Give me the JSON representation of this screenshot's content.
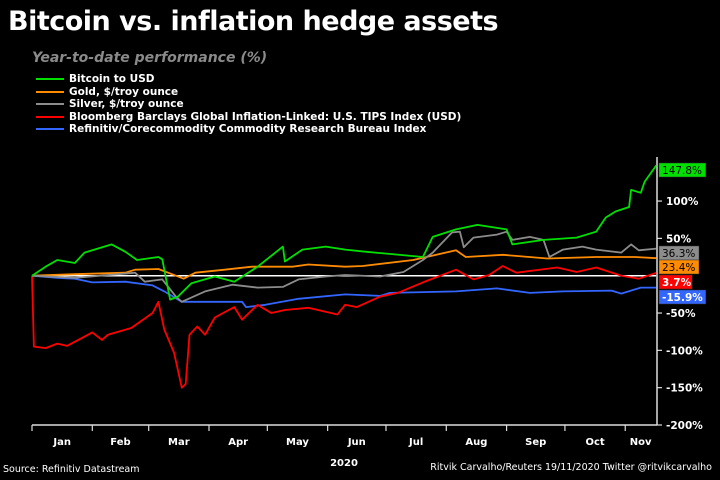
{
  "header": {
    "title": "Bitcoin vs. inflation hedge assets",
    "subtitle": "Year-to-date performance (%)"
  },
  "footer": {
    "source": "Source: Refinitiv Datastream",
    "credit": "Ritvik Carvalho/Reuters 19/11/2020 Twitter @ritvikcarvalho"
  },
  "chart_data": {
    "type": "line",
    "title": "Bitcoin vs. inflation hedge assets",
    "subtitle": "Year-to-date performance (%)",
    "xlabel": "2020",
    "ylabel": "",
    "x_tick_labels": [
      "Jan",
      "Feb",
      "Mar",
      "Apr",
      "May",
      "Jun",
      "Jul",
      "Aug",
      "Sep",
      "Oct",
      "Nov"
    ],
    "y_ticks": [
      100,
      50,
      -50,
      -100,
      -150,
      -200
    ],
    "y_tick_labels": [
      "100%",
      "50%",
      "-50%",
      "-100%",
      "-150%",
      "-200%"
    ],
    "ylim": [
      -200,
      155
    ],
    "xlim": [
      "2020-01-01",
      "2020-11-19"
    ],
    "legend_position": "top-left",
    "grid": false,
    "zero_line_color": "#ffffff",
    "series": [
      {
        "name": "Bitcoin to USD",
        "color": "#00e000",
        "end_label": "147.8%",
        "end_label_text_color": "#000000",
        "points": [
          [
            "2020-01-01",
            0
          ],
          [
            "2020-01-08",
            12
          ],
          [
            "2020-01-14",
            21
          ],
          [
            "2020-01-23",
            17
          ],
          [
            "2020-01-28",
            31
          ],
          [
            "2020-02-11",
            42
          ],
          [
            "2020-02-18",
            32
          ],
          [
            "2020-02-24",
            21
          ],
          [
            "2020-03-06",
            25
          ],
          [
            "2020-03-08",
            22
          ],
          [
            "2020-03-12",
            -32
          ],
          [
            "2020-03-16",
            -28
          ],
          [
            "2020-03-23",
            -10
          ],
          [
            "2020-04-04",
            -1
          ],
          [
            "2020-04-14",
            -8
          ],
          [
            "2020-04-26",
            12
          ],
          [
            "2020-05-09",
            39
          ],
          [
            "2020-05-10",
            19
          ],
          [
            "2020-05-19",
            35
          ],
          [
            "2020-05-31",
            39
          ],
          [
            "2020-06-10",
            35
          ],
          [
            "2020-06-21",
            32
          ],
          [
            "2020-07-20",
            25
          ],
          [
            "2020-07-25",
            52
          ],
          [
            "2020-08-06",
            62
          ],
          [
            "2020-08-17",
            68
          ],
          [
            "2020-09-01",
            62
          ],
          [
            "2020-09-04",
            42
          ],
          [
            "2020-09-20",
            48
          ],
          [
            "2020-10-07",
            51
          ],
          [
            "2020-10-17",
            59
          ],
          [
            "2020-10-22",
            78
          ],
          [
            "2020-10-27",
            86
          ],
          [
            "2020-11-03",
            92
          ],
          [
            "2020-11-04",
            115
          ],
          [
            "2020-11-09",
            111
          ],
          [
            "2020-11-11",
            126
          ],
          [
            "2020-11-17",
            147.8
          ]
        ]
      },
      {
        "name": "Gold, $/troy ounce",
        "color": "#ff8c00",
        "end_label": "23.4%",
        "end_label_text_color": "#000000",
        "points": [
          [
            "2020-01-01",
            0
          ],
          [
            "2020-01-23",
            2
          ],
          [
            "2020-02-18",
            4
          ],
          [
            "2020-02-23",
            8
          ],
          [
            "2020-03-06",
            9
          ],
          [
            "2020-03-13",
            2
          ],
          [
            "2020-03-19",
            -4
          ],
          [
            "2020-03-25",
            4
          ],
          [
            "2020-04-09",
            8
          ],
          [
            "2020-04-23",
            12
          ],
          [
            "2020-05-14",
            12
          ],
          [
            "2020-05-22",
            15
          ],
          [
            "2020-06-10",
            12
          ],
          [
            "2020-06-19",
            13
          ],
          [
            "2020-07-15",
            21
          ],
          [
            "2020-08-06",
            34
          ],
          [
            "2020-08-11",
            25
          ],
          [
            "2020-08-30",
            28
          ],
          [
            "2020-09-22",
            23
          ],
          [
            "2020-10-17",
            25
          ],
          [
            "2020-11-06",
            25
          ],
          [
            "2020-11-17",
            23.4
          ]
        ]
      },
      {
        "name": "Silver, $/troy ounce",
        "color": "#8c8c8c",
        "end_label": "36.3%",
        "end_label_text_color": "#000000",
        "points": [
          [
            "2020-01-01",
            0
          ],
          [
            "2020-01-23",
            -3
          ],
          [
            "2020-02-23",
            4
          ],
          [
            "2020-02-28",
            -8
          ],
          [
            "2020-03-08",
            -5
          ],
          [
            "2020-03-15",
            -28
          ],
          [
            "2020-03-18",
            -35
          ],
          [
            "2020-03-30",
            -21
          ],
          [
            "2020-04-13",
            -12
          ],
          [
            "2020-04-26",
            -16
          ],
          [
            "2020-05-09",
            -15
          ],
          [
            "2020-05-17",
            -5
          ],
          [
            "2020-05-31",
            -1
          ],
          [
            "2020-06-10",
            1
          ],
          [
            "2020-06-28",
            -1
          ],
          [
            "2020-07-10",
            5
          ],
          [
            "2020-07-20",
            21
          ],
          [
            "2020-07-25",
            31
          ],
          [
            "2020-08-04",
            58
          ],
          [
            "2020-08-08",
            59
          ],
          [
            "2020-08-10",
            38
          ],
          [
            "2020-08-15",
            51
          ],
          [
            "2020-08-27",
            55
          ],
          [
            "2020-09-01",
            59
          ],
          [
            "2020-09-04",
            48
          ],
          [
            "2020-09-13",
            52
          ],
          [
            "2020-09-20",
            48
          ],
          [
            "2020-09-23",
            25
          ],
          [
            "2020-09-30",
            35
          ],
          [
            "2020-10-10",
            39
          ],
          [
            "2020-10-17",
            35
          ],
          [
            "2020-10-30",
            31
          ],
          [
            "2020-11-04",
            42
          ],
          [
            "2020-11-08",
            34
          ],
          [
            "2020-11-17",
            36.3
          ]
        ]
      },
      {
        "name": "Bloomberg Barclays Global Inflation-Linked: U.S. TIPS Index (USD)",
        "color": "#ff0000",
        "end_label": "3.7%",
        "end_label_text_color": "#ffffff",
        "points": [
          [
            "2020-01-01",
            0
          ],
          [
            "2020-01-02",
            -95
          ],
          [
            "2020-01-08",
            -97
          ],
          [
            "2020-01-14",
            -91
          ],
          [
            "2020-01-19",
            -94
          ],
          [
            "2020-02-01",
            -76
          ],
          [
            "2020-02-06",
            -86
          ],
          [
            "2020-02-09",
            -79
          ],
          [
            "2020-02-21",
            -70
          ],
          [
            "2020-03-03",
            -50
          ],
          [
            "2020-03-06",
            -35
          ],
          [
            "2020-03-09",
            -72
          ],
          [
            "2020-03-14",
            -103
          ],
          [
            "2020-03-18",
            -150
          ],
          [
            "2020-03-20",
            -145
          ],
          [
            "2020-03-22",
            -79
          ],
          [
            "2020-03-26",
            -68
          ],
          [
            "2020-03-30",
            -79
          ],
          [
            "2020-04-04",
            -56
          ],
          [
            "2020-04-14",
            -42
          ],
          [
            "2020-04-18",
            -59
          ],
          [
            "2020-04-26",
            -39
          ],
          [
            "2020-05-03",
            -50
          ],
          [
            "2020-05-10",
            -46
          ],
          [
            "2020-05-22",
            -43
          ],
          [
            "2020-06-06",
            -52
          ],
          [
            "2020-06-10",
            -39
          ],
          [
            "2020-06-16",
            -42
          ],
          [
            "2020-06-28",
            -28
          ],
          [
            "2020-07-07",
            -23
          ],
          [
            "2020-07-20",
            -9
          ],
          [
            "2020-08-06",
            8
          ],
          [
            "2020-08-15",
            -5
          ],
          [
            "2020-08-23",
            1
          ],
          [
            "2020-08-30",
            13
          ],
          [
            "2020-09-06",
            4
          ],
          [
            "2020-09-27",
            11
          ],
          [
            "2020-10-07",
            5
          ],
          [
            "2020-10-17",
            11
          ],
          [
            "2020-10-30",
            0
          ],
          [
            "2020-11-08",
            -4
          ],
          [
            "2020-11-17",
            3.7
          ]
        ]
      },
      {
        "name": "Refinitiv/Corecommodity Commodity Research Bureau Index",
        "color": "#3366ff",
        "end_label": "-15.9%",
        "end_label_text_color": "#ffffff",
        "points": [
          [
            "2020-01-01",
            0
          ],
          [
            "2020-01-14",
            -3
          ],
          [
            "2020-01-23",
            -4
          ],
          [
            "2020-02-01",
            -9
          ],
          [
            "2020-02-18",
            -8
          ],
          [
            "2020-03-03",
            -13
          ],
          [
            "2020-03-09",
            -21
          ],
          [
            "2020-03-18",
            -35
          ],
          [
            "2020-04-01",
            -35
          ],
          [
            "2020-04-18",
            -35
          ],
          [
            "2020-04-20",
            -42
          ],
          [
            "2020-04-30",
            -39
          ],
          [
            "2020-05-17",
            -31
          ],
          [
            "2020-06-10",
            -25
          ],
          [
            "2020-06-28",
            -27
          ],
          [
            "2020-07-03",
            -23
          ],
          [
            "2020-08-06",
            -21
          ],
          [
            "2020-08-27",
            -17
          ],
          [
            "2020-09-13",
            -23
          ],
          [
            "2020-09-30",
            -21
          ],
          [
            "2020-10-25",
            -20
          ],
          [
            "2020-10-30",
            -24
          ],
          [
            "2020-11-09",
            -16
          ],
          [
            "2020-11-17",
            -15.9
          ]
        ]
      }
    ]
  }
}
